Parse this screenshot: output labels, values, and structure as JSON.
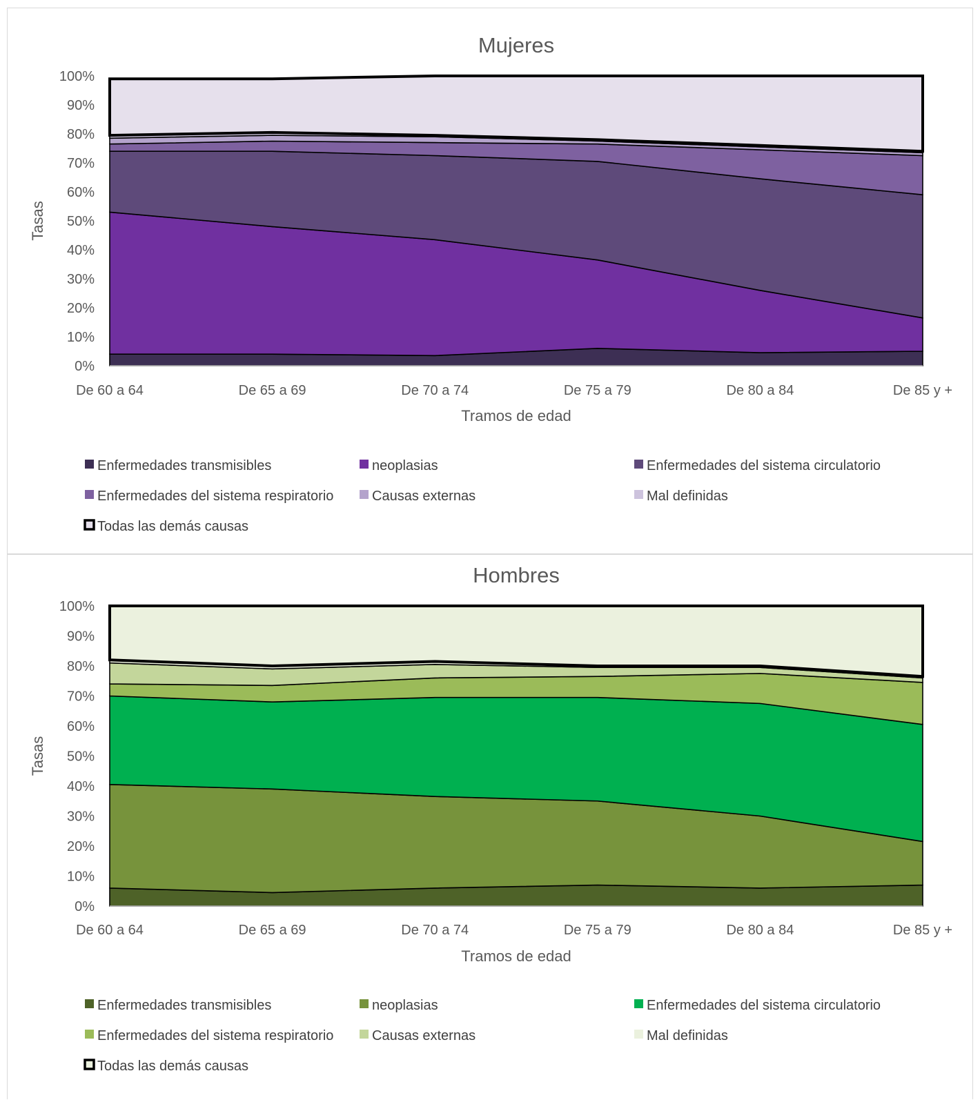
{
  "chart_data": [
    {
      "type": "area",
      "stacked": true,
      "title": "Mujeres",
      "xlabel": "Tramos de edad",
      "ylabel": "Tasas",
      "ylim": [
        0,
        1
      ],
      "y_ticks": [
        "0%",
        "10%",
        "20%",
        "30%",
        "40%",
        "50%",
        "60%",
        "70%",
        "80%",
        "90%",
        "100%"
      ],
      "categories": [
        "De 60 a 64",
        "De 65 a 69",
        "De 70 a 74",
        "De 75 a 79",
        "De 80 a 84",
        "De 85 y +"
      ],
      "grid": false,
      "legend_position": "bottom",
      "series": [
        {
          "name": "Enfermedades transmisibles",
          "color": "#3d2f54",
          "values": [
            0.04,
            0.04,
            0.035,
            0.06,
            0.045,
            0.05
          ]
        },
        {
          "name": "neoplasias",
          "color": "#7030a0",
          "values": [
            0.49,
            0.44,
            0.4,
            0.305,
            0.215,
            0.115
          ]
        },
        {
          "name": "Enfermedades del sistema circulatorio",
          "color": "#5e4a7a",
          "values": [
            0.21,
            0.26,
            0.29,
            0.34,
            0.385,
            0.425
          ]
        },
        {
          "name": "Enfermedades del sistema respiratorio",
          "color": "#7e61a0",
          "values": [
            0.025,
            0.035,
            0.045,
            0.06,
            0.1,
            0.135
          ]
        },
        {
          "name": "Causas externas",
          "color": "#b4a3cc",
          "values": [
            0.02,
            0.02,
            0.02,
            0.01,
            0.01,
            0.01
          ]
        },
        {
          "name": "Mal definidas",
          "color": "#cdc3dd",
          "values": [
            0.01,
            0.01,
            0.005,
            0.005,
            0.005,
            0.005
          ]
        },
        {
          "name": "Todas las demás causas",
          "color": "#e6e0ec",
          "values": [
            0.195,
            0.185,
            0.205,
            0.22,
            0.24,
            0.26
          ]
        }
      ]
    },
    {
      "type": "area",
      "stacked": true,
      "title": "Hombres",
      "xlabel": "Tramos de edad",
      "ylabel": "Tasas",
      "ylim": [
        0,
        1
      ],
      "y_ticks": [
        "0%",
        "10%",
        "20%",
        "30%",
        "40%",
        "50%",
        "60%",
        "70%",
        "80%",
        "90%",
        "100%"
      ],
      "categories": [
        "De 60 a 64",
        "De 65 a 69",
        "De 70 a 74",
        "De 75 a 79",
        "De 80 a 84",
        "De 85 y +"
      ],
      "grid": false,
      "legend_position": "bottom",
      "series": [
        {
          "name": "Enfermedades transmisibles",
          "color": "#4e6228",
          "values": [
            0.06,
            0.045,
            0.06,
            0.07,
            0.06,
            0.07
          ]
        },
        {
          "name": "neoplasias",
          "color": "#77933c",
          "values": [
            0.345,
            0.345,
            0.305,
            0.28,
            0.24,
            0.145
          ]
        },
        {
          "name": "Enfermedades del sistema circulatorio",
          "color": "#00b050",
          "values": [
            0.295,
            0.29,
            0.33,
            0.345,
            0.375,
            0.39
          ]
        },
        {
          "name": "Enfermedades del sistema respiratorio",
          "color": "#9bbb59",
          "values": [
            0.04,
            0.055,
            0.065,
            0.07,
            0.1,
            0.14
          ]
        },
        {
          "name": "Causas externas",
          "color": "#c3d69b",
          "values": [
            0.07,
            0.055,
            0.045,
            0.03,
            0.02,
            0.015
          ]
        },
        {
          "name": "Mal definidas",
          "color": "#ebf1de",
          "values": [
            0.01,
            0.01,
            0.01,
            0.005,
            0.005,
            0.005
          ]
        },
        {
          "name": "Todas las demás causas",
          "color": "#ebf1de",
          "values": [
            0.18,
            0.2,
            0.185,
            0.2,
            0.2,
            0.235
          ]
        }
      ]
    }
  ]
}
